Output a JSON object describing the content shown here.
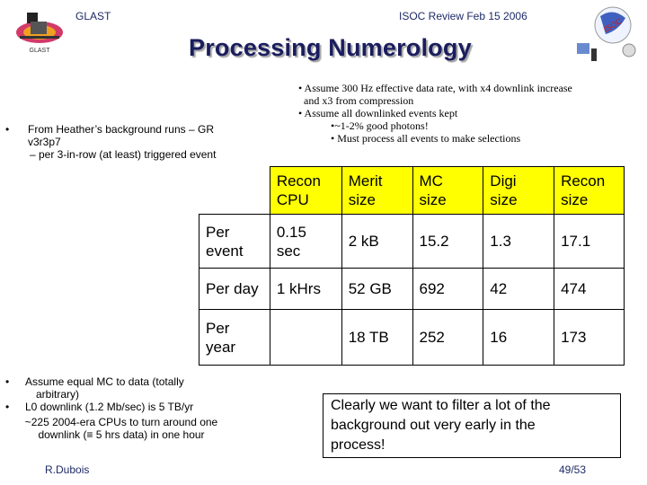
{
  "header": {
    "left": "GLAST",
    "right": "ISOC Review Feb 15 2006"
  },
  "title": "Processing Numerology",
  "assumptions": {
    "line1": "• Assume 300 Hz effective data rate, with x4 downlink increase",
    "line2": "and x3 from compression",
    "line3": "• Assume all downlinked events kept",
    "line4": "•~1-2% good photons!",
    "line5": "• Must process all events to make selections"
  },
  "background_note": {
    "bullet": "•",
    "line1": "From Heather’s background runs – GR",
    "line2": "v3r3p7",
    "sub": "– per 3-in-row (at least) triggered event"
  },
  "table": {
    "headers": [
      [
        "Recon",
        "CPU"
      ],
      [
        "Merit",
        "size"
      ],
      [
        "MC",
        "size"
      ],
      [
        "Digi",
        "size"
      ],
      [
        "Recon",
        "size"
      ]
    ],
    "rows": [
      {
        "label": [
          "Per",
          "event"
        ],
        "cpu": [
          "0.15",
          "sec"
        ],
        "merit": "2 kB",
        "mc": "15.2",
        "digi": "1.3",
        "recon": "17.1"
      },
      {
        "label": [
          "Per day"
        ],
        "cpu": [
          "1 kHrs"
        ],
        "merit": "52 GB",
        "mc": "692",
        "digi": "42",
        "recon": "474"
      },
      {
        "label": [
          "Per",
          "year"
        ],
        "cpu": [
          ""
        ],
        "merit": "18 TB",
        "mc": "252",
        "digi": "16",
        "recon": "173"
      }
    ]
  },
  "notes": {
    "bullet": "•",
    "n1a": "Assume equal MC to data (totally",
    "n1b": "arbitrary)",
    "n2": "L0 downlink (1.2 Mb/sec) is 5 TB/yr",
    "n3a": "~225 2004-era CPUs to turn around one",
    "n3b": "downlink (≡ 5 hrs data) in one hour"
  },
  "callout": {
    "line1": "Clearly we want to filter a lot of the",
    "line2": "background out very early in the",
    "line3": "process!"
  },
  "footer": {
    "author": "R.Dubois",
    "page": "49/53"
  },
  "colors": {
    "title": "#1a1d5e",
    "header": "#1f2a66",
    "table_header": "#ffff00"
  },
  "icons": {
    "left_logo": "glast-logo",
    "right_logo": "isoc-logo"
  }
}
